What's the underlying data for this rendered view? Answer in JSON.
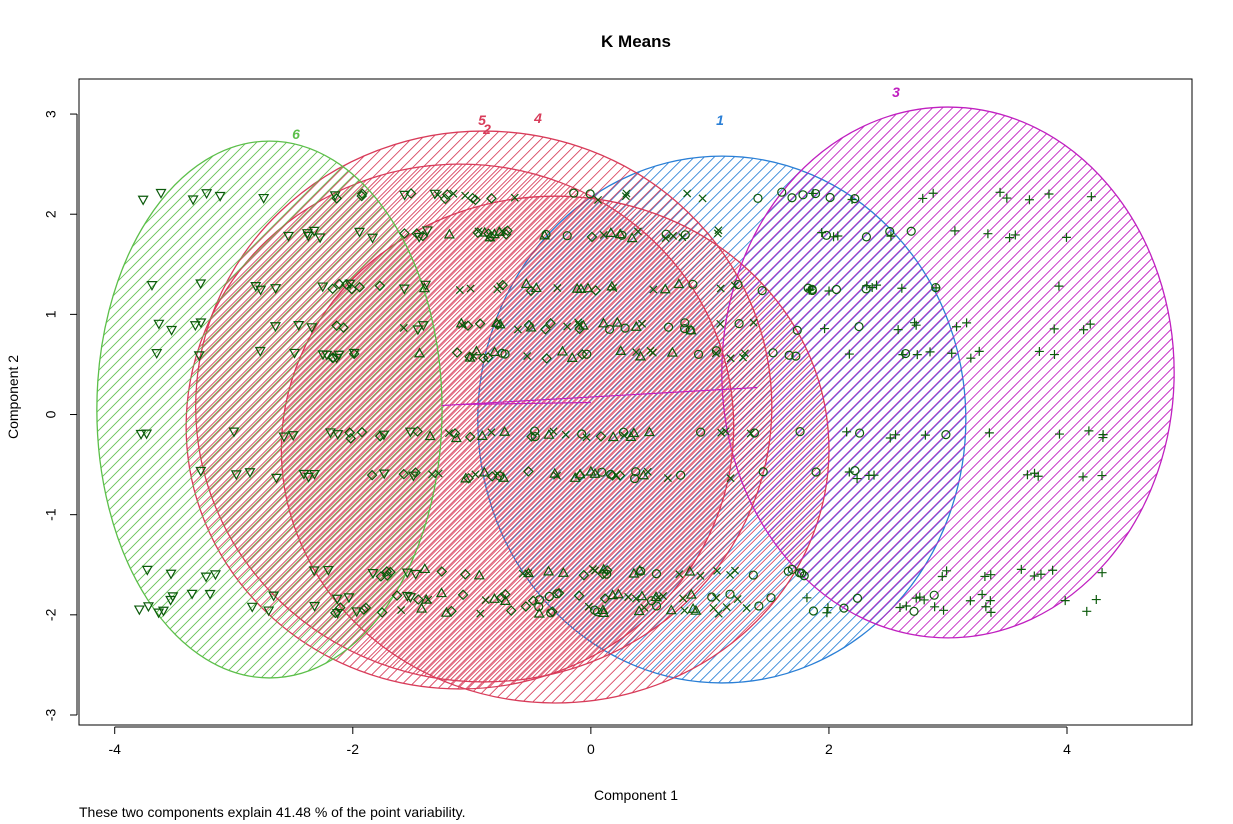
{
  "chart_data": {
    "type": "scatter",
    "title": "K Means",
    "xlabel": "Component 1",
    "ylabel": "Component 2",
    "xlim": [
      -4.3,
      5.05
    ],
    "ylim": [
      -3.1,
      3.35
    ],
    "xticks": [
      -4,
      -2,
      0,
      2,
      4
    ],
    "yticks": [
      -3,
      -2,
      -1,
      0,
      1,
      2,
      3
    ],
    "xtick_labels": [
      "-4",
      "-2",
      "0",
      "2",
      "4"
    ],
    "ytick_labels": [
      "-3",
      "-2",
      "-1",
      "0",
      "1",
      "2",
      "3"
    ],
    "grid": false,
    "legend": "none",
    "point_color": "#0b5a0b",
    "levels_y": [
      2.18,
      1.8,
      1.27,
      0.88,
      0.6,
      -0.2,
      -0.6,
      -1.58,
      -1.82,
      -1.95
    ],
    "clusters": [
      {
        "label": "1",
        "color": "#2a7fd6",
        "center": [
          1.1,
          -0.05
        ],
        "rx": 2.05,
        "ry": 2.63,
        "shape": "circle",
        "x_range": [
          -0.8,
          3.0
        ]
      },
      {
        "label": "2",
        "color": "#d83c5a",
        "center": [
          -0.3,
          -0.35
        ],
        "rx": 2.3,
        "ry": 2.53,
        "shape": "triangle",
        "x_range": [
          -1.5,
          0.9
        ]
      },
      {
        "label": "3",
        "color": "#c020c0",
        "center": [
          3.0,
          0.42
        ],
        "rx": 1.9,
        "ry": 2.65,
        "shape": "plus",
        "x_range": [
          1.8,
          4.4
        ]
      },
      {
        "label": "4",
        "color": "#d83c5a",
        "center": [
          -0.9,
          0.08
        ],
        "rx": 2.42,
        "ry": 2.75,
        "shape": "cross",
        "x_range": [
          -1.6,
          1.4
        ]
      },
      {
        "label": "5",
        "color": "#d83c5a",
        "center": [
          -1.1,
          -0.12
        ],
        "rx": 2.3,
        "ry": 2.62,
        "shape": "diamond",
        "x_range": [
          -2.2,
          0.3
        ]
      },
      {
        "label": "6",
        "color": "#5cbf4a",
        "center": [
          -2.7,
          0.05
        ],
        "rx": 1.45,
        "ry": 2.68,
        "shape": "triangle-down",
        "x_range": [
          -3.8,
          -1.3
        ]
      }
    ],
    "caption": "These two components explain 41.48 % of the point variability."
  }
}
